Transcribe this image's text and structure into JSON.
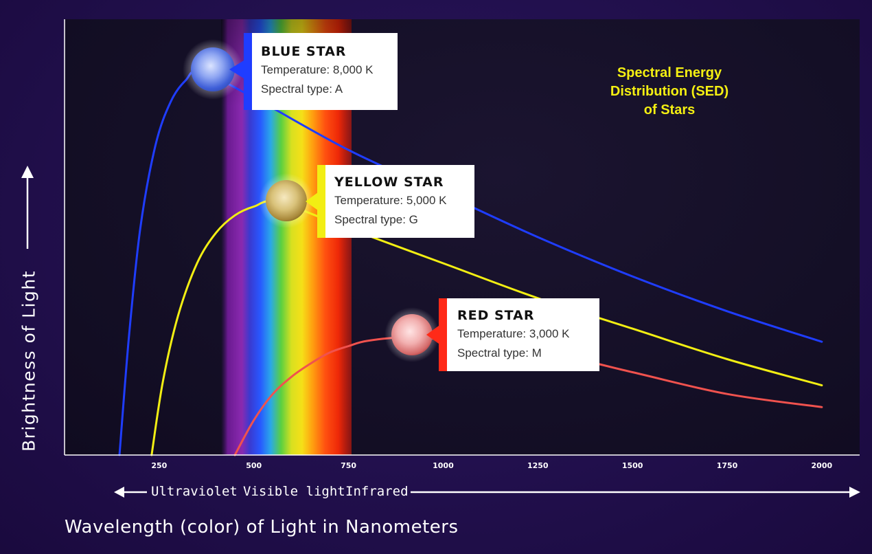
{
  "chart_data": {
    "type": "line",
    "title": "Spectral Energy Distribution (SED) of Stars",
    "title_lines": [
      "Spectral Energy",
      "Distribution (SED)",
      "of Stars"
    ],
    "xlabel": "Wavelength (color) of Light in Nanometers",
    "ylabel": "Brightness of Light",
    "xlim": [
      0,
      2100
    ],
    "ylim": [
      0,
      1
    ],
    "x_ticks": [
      250,
      500,
      750,
      1000,
      1250,
      1500,
      1750,
      2000
    ],
    "x_tick_labels": [
      "250",
      "500",
      "750",
      "1000",
      "1250",
      "1500",
      "1750",
      "2000"
    ],
    "regions": [
      "Ultraviolet",
      "Visible light",
      "Infrared"
    ],
    "series": [
      {
        "name": "BLUE STAR",
        "temperature": "Temperature: 8,000 K",
        "spectral_type": "Spectral type: A",
        "color": "#1f3dff",
        "peak_x": 360,
        "peak_y": 0.88,
        "x": [
          145,
          170,
          200,
          240,
          280,
          320,
          360,
          500,
          750,
          1000,
          1250,
          1500,
          1750,
          2000
        ],
        "y": [
          0.0,
          0.27,
          0.52,
          0.71,
          0.81,
          0.86,
          0.88,
          0.82,
          0.7,
          0.6,
          0.5,
          0.41,
          0.33,
          0.26
        ]
      },
      {
        "name": "YELLOW STAR",
        "temperature": "Temperature: 5,000 K",
        "spectral_type": "Spectral type: G",
        "color": "#f2ee13",
        "peak_x": 565,
        "peak_y": 0.58,
        "x": [
          230,
          260,
          300,
          350,
          400,
          450,
          500,
          565,
          750,
          1000,
          1250,
          1500,
          1750,
          2000
        ],
        "y": [
          0.0,
          0.17,
          0.32,
          0.44,
          0.51,
          0.55,
          0.57,
          0.58,
          0.52,
          0.44,
          0.36,
          0.29,
          0.22,
          0.16
        ]
      },
      {
        "name": "RED STAR",
        "temperature": "Temperature: 3,000 K",
        "spectral_type": "Spectral type: M",
        "color": "#f0524e",
        "peak_x": 900,
        "peak_y": 0.27,
        "x": [
          450,
          500,
          550,
          600,
          650,
          700,
          750,
          800,
          900,
          1000,
          1250,
          1500,
          1750,
          2000
        ],
        "y": [
          0.0,
          0.08,
          0.14,
          0.18,
          0.21,
          0.235,
          0.25,
          0.262,
          0.27,
          0.265,
          0.24,
          0.19,
          0.14,
          0.11
        ]
      }
    ]
  }
}
